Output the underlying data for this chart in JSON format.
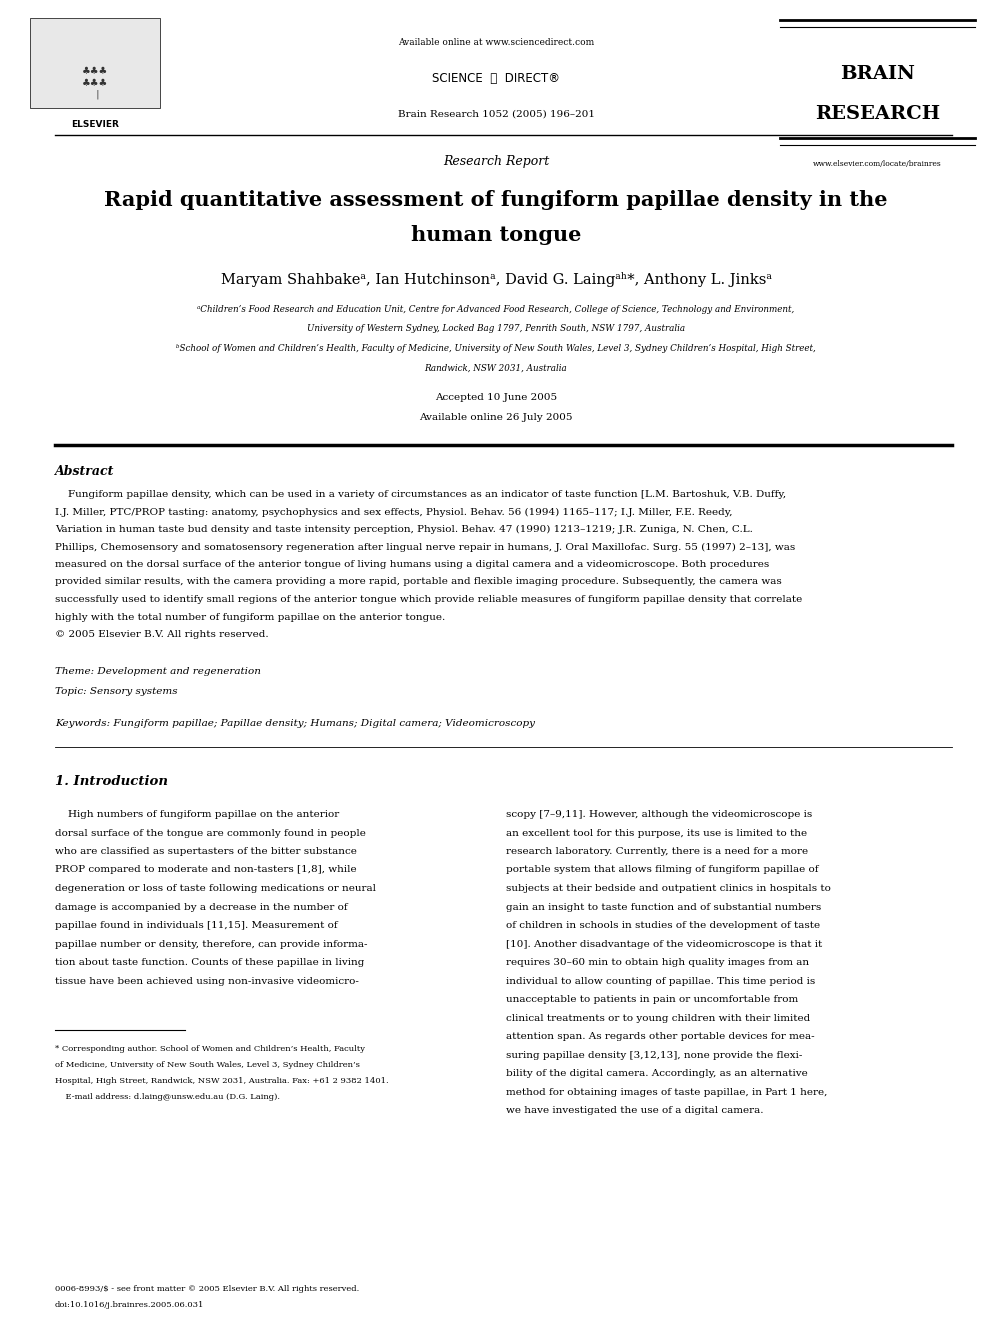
{
  "background_color": "#ffffff",
  "page_width": 9.92,
  "page_height": 13.23,
  "top_bar_text": "Available online at www.sciencedirect.com",
  "journal_info": "Brain Research 1052 (2005) 196–201",
  "website": "www.elsevier.com/locate/brainres",
  "section_label": "Research Report",
  "title_line1": "Rapid quantitative assessment of fungiform papillae density in the",
  "title_line2": "human tongue",
  "accepted_text": "Accepted 10 June 2005",
  "available_text": "Available online 26 July 2005",
  "abstract_label": "Abstract",
  "theme_text": "Theme: Development and regeneration",
  "topic_text": "Topic: Sensory systems",
  "keywords_text": "Keywords: Fungiform papillae; Papillae density; Humans; Digital camera; Videomicroscopy",
  "intro_heading": "1. Introduction",
  "footer_line1": "0006-8993/$ - see front matter © 2005 Elsevier B.V. All rights reserved.",
  "footer_line2": "doi:10.1016/j.brainres.2005.06.031",
  "abstract_lines": [
    "    Fungiform papillae density, which can be used in a variety of circumstances as an indicator of taste function [L.M. Bartoshuk, V.B. Duffy,",
    "I.J. Miller, PTC/PROP tasting: anatomy, psychophysics and sex effects, Physiol. Behav. 56 (1994) 1165–117; I.J. Miller, F.E. Reedy,",
    "Variation in human taste bud density and taste intensity perception, Physiol. Behav. 47 (1990) 1213–1219; J.R. Zuniga, N. Chen, C.L.",
    "Phillips, Chemosensory and somatosensory regeneration after lingual nerve repair in humans, J. Oral Maxillofac. Surg. 55 (1997) 2–13], was",
    "measured on the dorsal surface of the anterior tongue of living humans using a digital camera and a videomicroscope. Both procedures",
    "provided similar results, with the camera providing a more rapid, portable and flexible imaging procedure. Subsequently, the camera was",
    "successfully used to identify small regions of the anterior tongue which provide reliable measures of fungiform papillae density that correlate",
    "highly with the total number of fungiform papillae on the anterior tongue.",
    "© 2005 Elsevier B.V. All rights reserved."
  ],
  "left_col_lines": [
    "    High numbers of fungiform papillae on the anterior",
    "dorsal surface of the tongue are commonly found in people",
    "who are classified as supertasters of the bitter substance",
    "PROP compared to moderate and non-tasters [1,8], while",
    "degeneration or loss of taste following medications or neural",
    "damage is accompanied by a decrease in the number of",
    "papillae found in individuals [11,15]. Measurement of",
    "papillae number or density, therefore, can provide informa-",
    "tion about taste function. Counts of these papillae in living",
    "tissue have been achieved using non-invasive videomicro-"
  ],
  "right_col_lines": [
    "scopy [7–9,11]. However, although the videomicroscope is",
    "an excellent tool for this purpose, its use is limited to the",
    "research laboratory. Currently, there is a need for a more",
    "portable system that allows filming of fungiform papillae of",
    "subjects at their bedside and outpatient clinics in hospitals to",
    "gain an insight to taste function and of substantial numbers",
    "of children in schools in studies of the development of taste",
    "[10]. Another disadvantage of the videomicroscope is that it",
    "requires 30–60 min to obtain high quality images from an",
    "individual to allow counting of papillae. This time period is",
    "unacceptable to patients in pain or uncomfortable from",
    "clinical treatments or to young children with their limited",
    "attention span. As regards other portable devices for mea-",
    "suring papillae density [3,12,13], none provide the flexi-",
    "bility of the digital camera. Accordingly, as an alternative",
    "method for obtaining images of taste papillae, in Part 1 here,",
    "we have investigated the use of a digital camera."
  ],
  "footnote_lines": [
    "* Corresponding author. School of Women and Children’s Health, Faculty",
    "of Medicine, University of New South Wales, Level 3, Sydney Children’s",
    "Hospital, High Street, Randwick, NSW 2031, Australia. Fax: +61 2 9382 1401.",
    "    E-mail address: d.laing@unsw.edu.au (D.G. Laing)."
  ],
  "affil_lines": [
    "ᵃChildren’s Food Research and Education Unit, Centre for Advanced Food Research, College of Science, Technology and Environment,",
    "University of Western Sydney, Locked Bag 1797, Penrith South, NSW 1797, Australia",
    "ᵇSchool of Women and Children’s Health, Faculty of Medicine, University of New South Wales, Level 3, Sydney Children’s Hospital, High Street,",
    "Randwick, NSW 2031, Australia"
  ]
}
